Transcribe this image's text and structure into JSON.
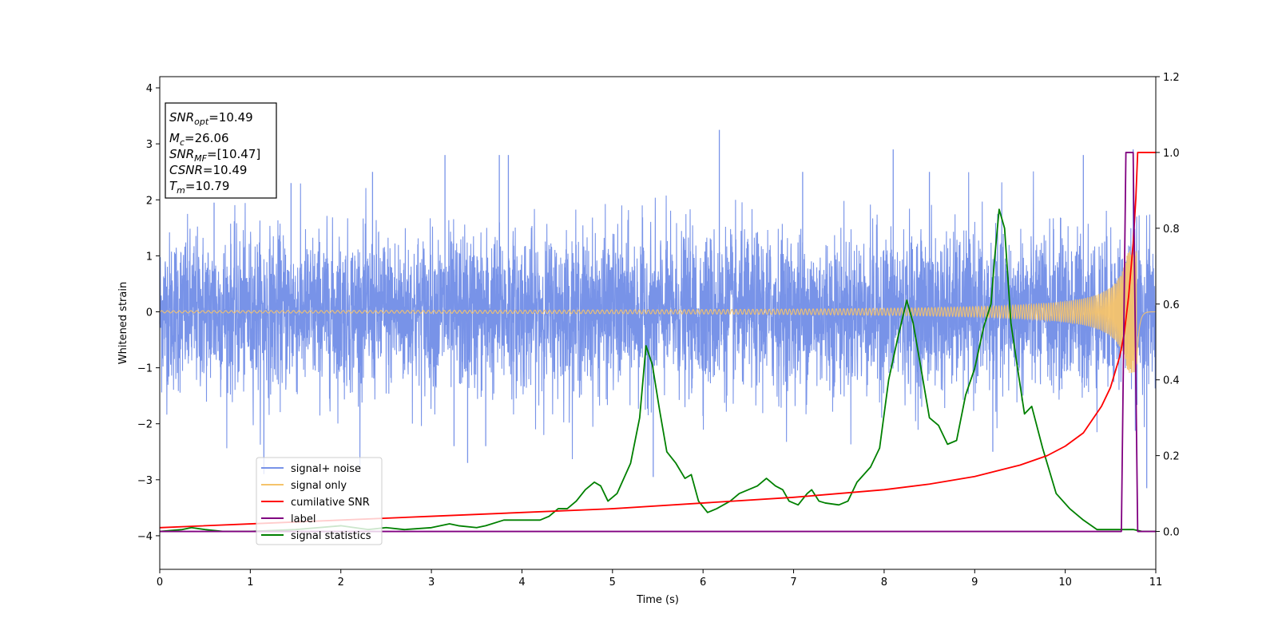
{
  "chart_data": {
    "type": "line",
    "xlabel": "Time (s)",
    "ylabel": "Whitened strain",
    "xlim": [
      0,
      11
    ],
    "ylim": [
      -4.6,
      4.2
    ],
    "y2lim": [
      -0.1,
      1.2
    ],
    "x_ticks": [
      0,
      1,
      2,
      3,
      4,
      5,
      6,
      7,
      8,
      9,
      10,
      11
    ],
    "y_ticks": [
      -4,
      -3,
      -2,
      -1,
      0,
      1,
      2,
      3,
      4
    ],
    "y2_ticks": [
      0.0,
      0.2,
      0.4,
      0.6,
      0.8,
      1.0,
      1.2
    ],
    "y2_tick_labels": [
      "0.0",
      "0.2",
      "0.4",
      "0.6",
      "0.8",
      "1.0",
      "1.2"
    ],
    "legend_position": "lower-left",
    "info_box": {
      "position": "top-left",
      "lines": [
        {
          "main": "SNR",
          "sub": "opt",
          "value": "=10.49"
        },
        {
          "main": "M",
          "sub": "c",
          "value": "=26.06"
        },
        {
          "main": "SNR",
          "sub": "MF",
          "value": "=[10.47]"
        },
        {
          "main": "CSNR",
          "sub": "",
          "value": "=10.49"
        },
        {
          "main": "T",
          "sub": "m",
          "value": "=10.79"
        }
      ]
    },
    "series": [
      {
        "name": "signal+ noise",
        "axis": "left",
        "color": "#7893e8",
        "kind": "noise_band",
        "band_sigma": 0.7,
        "extremes": [
          {
            "x": 0.6,
            "y": 1.95
          },
          {
            "x": 1.15,
            "y": -2.9
          },
          {
            "x": 1.45,
            "y": 2.3
          },
          {
            "x": 2.35,
            "y": 2.5
          },
          {
            "x": 3.15,
            "y": 2.8
          },
          {
            "x": 3.25,
            "y": -2.4
          },
          {
            "x": 3.4,
            "y": -2.7
          },
          {
            "x": 3.6,
            "y": -2.4
          },
          {
            "x": 3.75,
            "y": 2.8
          },
          {
            "x": 3.85,
            "y": 2.8
          },
          {
            "x": 5.45,
            "y": -2.95
          },
          {
            "x": 6.18,
            "y": 3.25
          },
          {
            "x": 7.1,
            "y": 2.5
          },
          {
            "x": 8.1,
            "y": 2.9
          },
          {
            "x": 8.5,
            "y": 2.5
          },
          {
            "x": 9.2,
            "y": -2.5
          },
          {
            "x": 10.2,
            "y": 2.8
          },
          {
            "x": 10.75,
            "y": 2.9
          },
          {
            "x": 10.9,
            "y": -3.15
          }
        ]
      },
      {
        "name": "signal only",
        "axis": "left",
        "color": "#f5c36b",
        "kind": "chirp",
        "coalescence_time": 10.79,
        "max_amplitude": 1.1
      },
      {
        "name": "cumilative SNR",
        "axis": "right",
        "color": "#ff0000",
        "x": [
          0,
          1,
          2,
          3,
          4,
          5,
          6,
          7,
          8,
          8.5,
          9,
          9.5,
          9.8,
          10.0,
          10.2,
          10.4,
          10.5,
          10.6,
          10.65,
          10.7,
          10.75,
          10.78,
          10.8,
          11
        ],
        "y": [
          0.01,
          0.02,
          0.03,
          0.04,
          0.05,
          0.06,
          0.075,
          0.09,
          0.11,
          0.125,
          0.145,
          0.175,
          0.2,
          0.225,
          0.26,
          0.33,
          0.38,
          0.46,
          0.52,
          0.62,
          0.76,
          0.88,
          1.0,
          1.0
        ]
      },
      {
        "name": "label",
        "axis": "right",
        "color": "#800080",
        "x": [
          0,
          10.62,
          10.67,
          10.75,
          10.8,
          11
        ],
        "y": [
          0.0,
          0.0,
          1.0,
          1.0,
          0.0,
          0.0
        ]
      },
      {
        "name": "signal statistics",
        "axis": "right",
        "color": "#008000",
        "x": [
          0,
          0.25,
          0.35,
          0.5,
          0.7,
          1.0,
          1.5,
          2.0,
          2.3,
          2.5,
          2.7,
          3.0,
          3.2,
          3.3,
          3.5,
          3.6,
          3.8,
          4.0,
          4.2,
          4.3,
          4.4,
          4.5,
          4.6,
          4.7,
          4.8,
          4.87,
          4.95,
          5.05,
          5.2,
          5.3,
          5.37,
          5.44,
          5.52,
          5.6,
          5.7,
          5.8,
          5.87,
          5.95,
          6.05,
          6.15,
          6.3,
          6.4,
          6.5,
          6.6,
          6.7,
          6.8,
          6.88,
          6.95,
          7.05,
          7.15,
          7.2,
          7.28,
          7.35,
          7.5,
          7.6,
          7.7,
          7.85,
          7.95,
          8.05,
          8.15,
          8.25,
          8.32,
          8.4,
          8.5,
          8.6,
          8.7,
          8.8,
          8.9,
          9.0,
          9.1,
          9.18,
          9.22,
          9.27,
          9.33,
          9.4,
          9.48,
          9.55,
          9.63,
          9.75,
          9.9,
          10.05,
          10.2,
          10.35,
          10.6,
          10.75,
          10.85,
          11
        ],
        "y": [
          0.0,
          0.005,
          0.01,
          0.005,
          0.0,
          0.0,
          0.005,
          0.015,
          0.005,
          0.01,
          0.005,
          0.01,
          0.02,
          0.015,
          0.01,
          0.015,
          0.03,
          0.03,
          0.03,
          0.04,
          0.06,
          0.06,
          0.08,
          0.11,
          0.13,
          0.12,
          0.08,
          0.1,
          0.18,
          0.3,
          0.49,
          0.44,
          0.32,
          0.21,
          0.18,
          0.14,
          0.15,
          0.08,
          0.05,
          0.06,
          0.08,
          0.1,
          0.11,
          0.12,
          0.14,
          0.12,
          0.11,
          0.08,
          0.07,
          0.1,
          0.11,
          0.08,
          0.075,
          0.07,
          0.08,
          0.13,
          0.17,
          0.22,
          0.4,
          0.51,
          0.61,
          0.55,
          0.44,
          0.3,
          0.28,
          0.23,
          0.24,
          0.36,
          0.43,
          0.54,
          0.6,
          0.72,
          0.85,
          0.8,
          0.55,
          0.42,
          0.31,
          0.33,
          0.22,
          0.1,
          0.06,
          0.03,
          0.005,
          0.005,
          0.005,
          0.0,
          0.0
        ]
      }
    ]
  }
}
